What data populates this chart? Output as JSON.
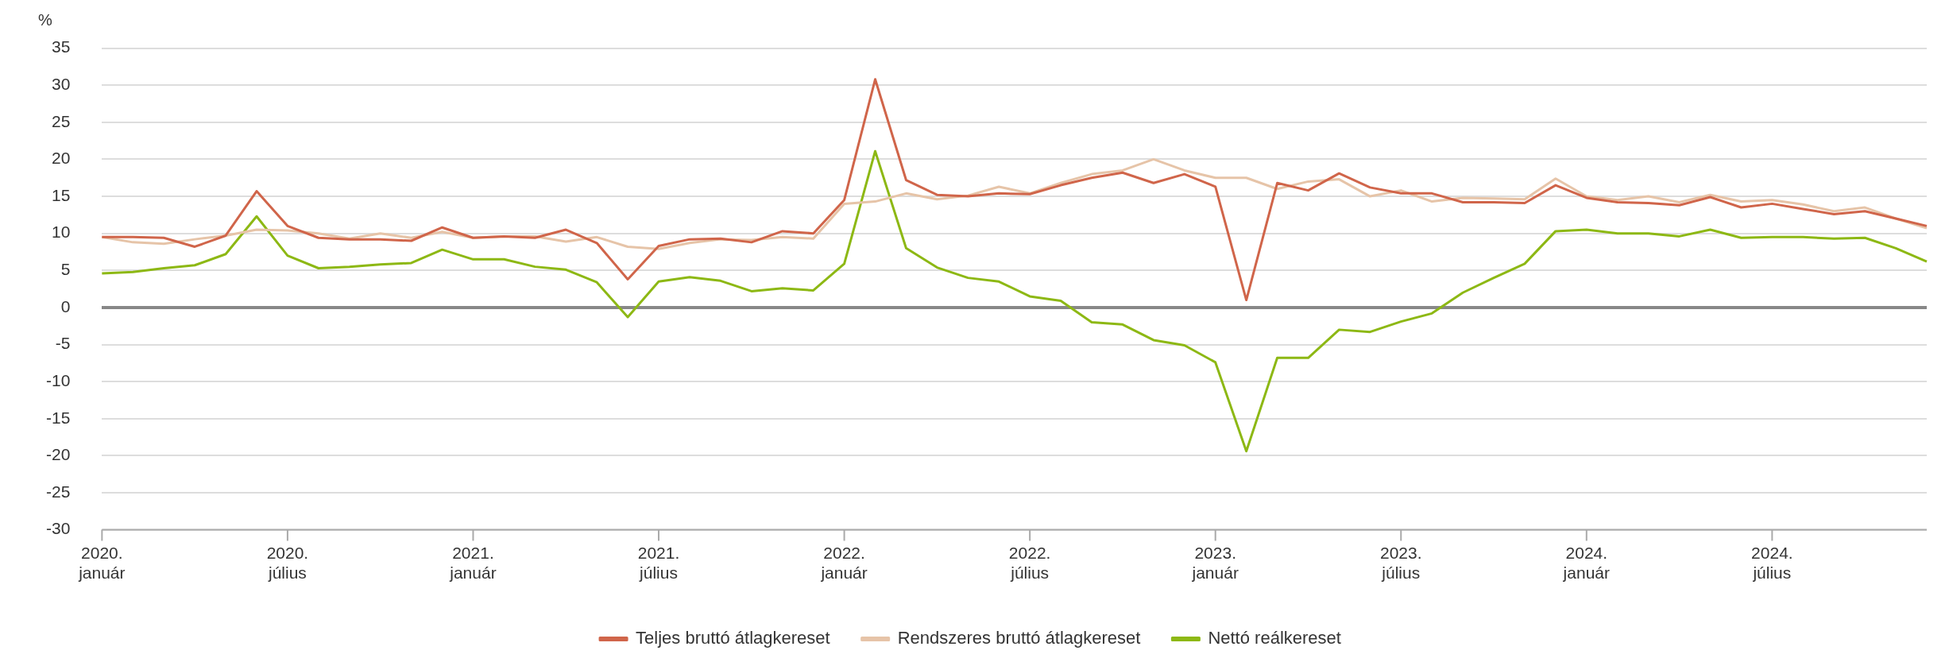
{
  "chart_data": {
    "type": "line",
    "ylabel": "%",
    "categories": [
      "2020. január",
      null,
      null,
      null,
      null,
      null,
      "2020. július",
      null,
      null,
      null,
      null,
      null,
      "2021. január",
      null,
      null,
      null,
      null,
      null,
      "2021. július",
      null,
      null,
      null,
      null,
      null,
      "2022. január",
      null,
      null,
      null,
      null,
      null,
      "2022. július",
      null,
      null,
      null,
      null,
      null,
      "2023. január",
      null,
      null,
      null,
      null,
      null,
      "2023. július",
      null,
      null,
      null,
      null,
      null,
      "2024. január",
      null,
      null,
      null,
      null,
      null,
      "2024. július",
      null,
      null,
      null,
      null,
      null
    ],
    "ylim": [
      -30,
      35
    ],
    "yticks": [
      -30,
      -25,
      -20,
      -15,
      -10,
      -5,
      0,
      5,
      10,
      15,
      20,
      25,
      30,
      35
    ],
    "grid": "y",
    "legend": "bottom",
    "marker": "none",
    "line_style": "solid",
    "series": [
      {
        "name": "Teljes bruttó átlagkereset",
        "color": "#d0654a",
        "values": [
          9.5,
          9.5,
          9.4,
          8.2,
          9.7,
          15.7,
          11,
          9.4,
          9.2,
          9.2,
          9,
          10.8,
          9.4,
          9.6,
          9.4,
          10.5,
          8.7,
          3.8,
          8.3,
          9.2,
          9.3,
          8.8,
          10.3,
          10,
          14.5,
          30.8,
          17.2,
          15.2,
          15,
          15.4,
          15.3,
          16.5,
          17.5,
          18.2,
          16.8,
          18,
          16.3,
          1,
          16.8,
          15.8,
          18.1,
          16.2,
          15.4,
          15.4,
          14.2,
          14.2,
          14.1,
          16.5,
          14.8,
          14.2,
          14.1,
          13.8,
          14.9,
          13.5,
          14,
          13.3,
          12.6,
          13,
          12,
          11
        ]
      },
      {
        "name": "Rendszeres bruttó átlagkereset",
        "color": "#e6c4a8",
        "values": [
          9.5,
          8.8,
          8.6,
          9.2,
          9.7,
          10.5,
          10.4,
          10,
          9.3,
          10,
          9.4,
          10.2,
          9.4,
          9.6,
          9.6,
          8.9,
          9.5,
          8.2,
          7.9,
          8.7,
          9.2,
          9.1,
          9.5,
          9.3,
          14,
          14.3,
          15.4,
          14.6,
          15.1,
          16.3,
          15.4,
          16.8,
          18,
          18.5,
          20,
          18.5,
          17.5,
          17.5,
          16,
          17,
          17.3,
          15,
          15.8,
          14.3,
          14.8,
          14.7,
          14.6,
          17.4,
          15,
          14.5,
          15,
          14.2,
          15.2,
          14.3,
          14.5,
          13.9,
          13,
          13.5,
          12,
          10.7
        ]
      },
      {
        "name": "Nettó reálkereset",
        "color": "#8db814",
        "values": [
          4.6,
          4.8,
          5.3,
          5.7,
          7.2,
          12.3,
          7,
          5.3,
          5.5,
          5.8,
          6,
          7.8,
          6.5,
          6.5,
          5.5,
          5.1,
          3.4,
          -1.3,
          3.5,
          4.1,
          3.6,
          2.2,
          2.6,
          2.3,
          5.9,
          21.1,
          8,
          5.4,
          4,
          3.5,
          1.5,
          0.9,
          -2,
          -2.3,
          -4.4,
          -5.1,
          -7.4,
          -19.4,
          -6.8,
          -6.8,
          -3,
          -3.3,
          -1.9,
          -0.8,
          2,
          4,
          5.9,
          10.3,
          10.5,
          10,
          10,
          9.6,
          10.5,
          9.4,
          9.5,
          9.5,
          9.3,
          9.4,
          8,
          6.2
        ]
      }
    ]
  }
}
